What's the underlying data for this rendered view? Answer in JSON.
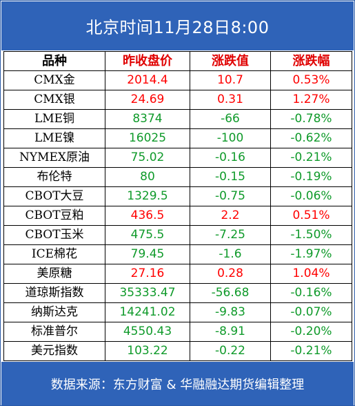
{
  "title": "北京时间11月28日8:00",
  "headers": [
    "品种",
    "昨收盘价",
    "涨跌值",
    "涨跌幅"
  ],
  "colors": {
    "up": "#ff0000",
    "down": "#0f9a2a",
    "header_bg": "#2f63b8"
  },
  "rows": [
    {
      "name": "CMX金",
      "close": "2014.4",
      "change": "10.7",
      "pct": "0.53%",
      "dir": "up"
    },
    {
      "name": "CMX银",
      "close": "24.69",
      "change": "0.31",
      "pct": "1.27%",
      "dir": "up"
    },
    {
      "name": "LME铜",
      "close": "8374",
      "change": "-66",
      "pct": "-0.78%",
      "dir": "down"
    },
    {
      "name": "LME镍",
      "close": "16025",
      "change": "-100",
      "pct": "-0.62%",
      "dir": "down"
    },
    {
      "name": "NYMEX原油",
      "close": "75.02",
      "change": "-0.16",
      "pct": "-0.21%",
      "dir": "down"
    },
    {
      "name": "布伦特",
      "close": "80",
      "change": "-0.15",
      "pct": "-0.19%",
      "dir": "down"
    },
    {
      "name": "CBOT大豆",
      "close": "1329.5",
      "change": "-0.75",
      "pct": "-0.06%",
      "dir": "down"
    },
    {
      "name": "CBOT豆粕",
      "close": "436.5",
      "change": "2.2",
      "pct": "0.51%",
      "dir": "up"
    },
    {
      "name": "CBOT玉米",
      "close": "475.5",
      "change": "-7.25",
      "pct": "-1.50%",
      "dir": "down"
    },
    {
      "name": "ICE棉花",
      "close": "79.45",
      "change": "-1.6",
      "pct": "-1.97%",
      "dir": "down"
    },
    {
      "name": "美原糖",
      "close": "27.16",
      "change": "0.28",
      "pct": "1.04%",
      "dir": "up"
    },
    {
      "name": "道琼斯指数",
      "close": "35333.47",
      "change": "-56.68",
      "pct": "-0.16%",
      "dir": "down"
    },
    {
      "name": "纳斯达克",
      "close": "14241.02",
      "change": "-9.83",
      "pct": "-0.07%",
      "dir": "down"
    },
    {
      "name": "标准普尔",
      "close": "4550.43",
      "change": "-8.91",
      "pct": "-0.20%",
      "dir": "down"
    },
    {
      "name": "美元指数",
      "close": "103.22",
      "change": "-0.22",
      "pct": "-0.21%",
      "dir": "down"
    }
  ],
  "footer": "数据来源：东方财富 & 华融融达期货编辑整理"
}
